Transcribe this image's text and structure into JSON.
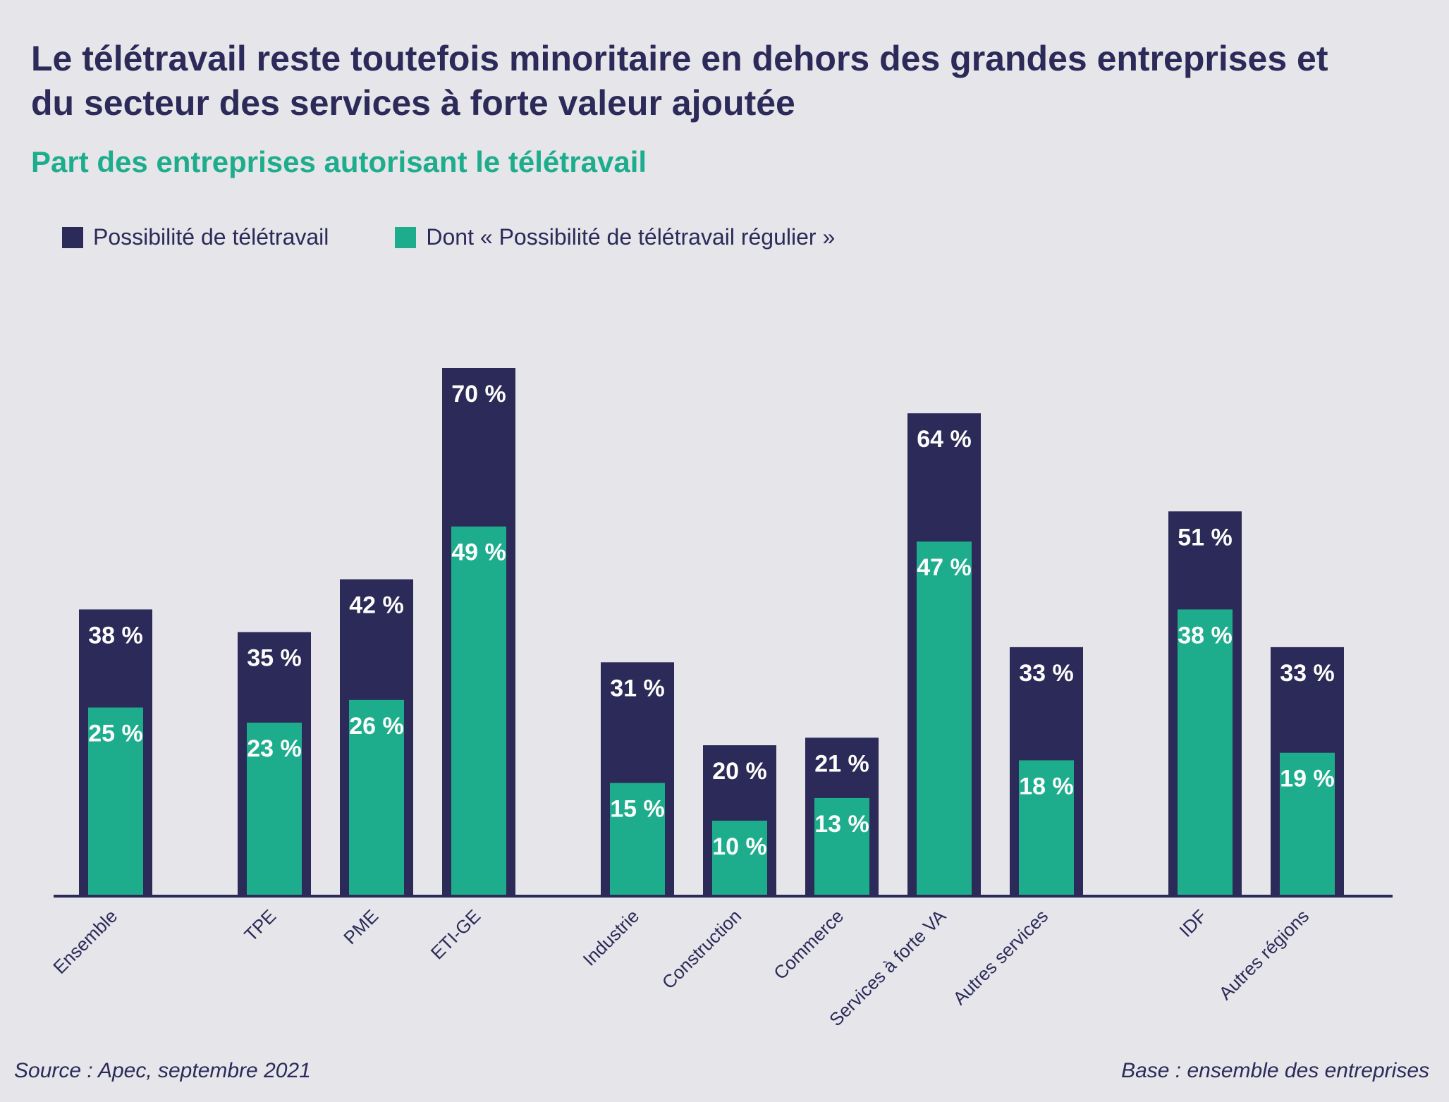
{
  "title": "Le télétravail reste toutefois minoritaire en dehors des grandes entreprises et du secteur des services à forte valeur ajoutée",
  "subtitle": "Part des entreprises autorisant le télétravail",
  "source": "Source : Apec, septembre 2021",
  "base": "Base : ensemble des entreprises",
  "colors": {
    "primary": "#2c2a58",
    "accent": "#1ead8c",
    "background": "#e6e5ea",
    "value_label": "#ffffff"
  },
  "chart_data": {
    "type": "bar",
    "title": "Le télétravail reste toutefois minoritaire en dehors des grandes entreprises et du secteur des services à forte valeur ajoutée",
    "subtitle": "Part des entreprises autorisant le télétravail",
    "categories": [
      "Ensemble",
      "TPE",
      "PME",
      "ETI-GE",
      "Industrie",
      "Construction",
      "Commerce",
      "Services à forte VA",
      "Autres services",
      "IDF",
      "Autres régions"
    ],
    "groups": [
      [
        "Ensemble"
      ],
      [
        "TPE",
        "PME",
        "ETI-GE"
      ],
      [
        "Industrie",
        "Construction",
        "Commerce",
        "Services à forte VA",
        "Autres services"
      ],
      [
        "IDF",
        "Autres régions"
      ]
    ],
    "series": [
      {
        "name": "Possibilité de télétravail",
        "color": "#2c2a58",
        "values": [
          38,
          35,
          42,
          70,
          31,
          20,
          21,
          64,
          33,
          51,
          33
        ]
      },
      {
        "name": "Dont « Possibilité de télétravail régulier »",
        "color": "#1ead8c",
        "values": [
          25,
          23,
          26,
          49,
          15,
          10,
          13,
          47,
          18,
          38,
          19
        ]
      }
    ],
    "value_suffix": " %",
    "ylim": [
      0,
      100
    ],
    "grid": false,
    "legend_position": "top-left",
    "overlap": "nested",
    "xlabel": "",
    "ylabel": ""
  }
}
